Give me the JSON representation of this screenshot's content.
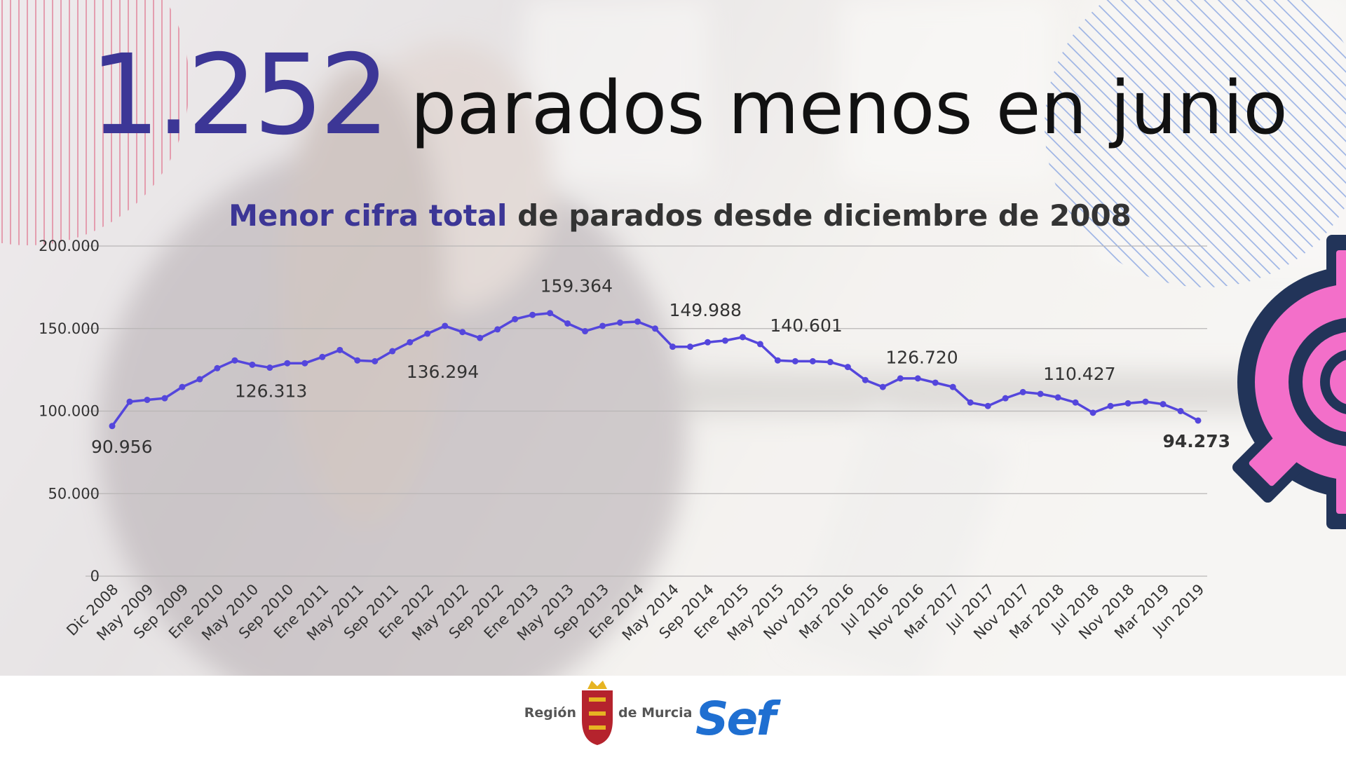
{
  "chart_data": {
    "type": "line",
    "headline": {
      "number": "1.252",
      "text": "parados menos en junio"
    },
    "subtitle": {
      "highlight": "Menor cifra total",
      "text": "de parados desde diciembre de 2008"
    },
    "categories": [
      "Dic 2008",
      null,
      "May 2009",
      null,
      "Sep 2009",
      null,
      "Ene 2010",
      null,
      "May 2010",
      null,
      "Sep 2010",
      null,
      "Ene 2011",
      null,
      "May 2011",
      null,
      "Sep 2011",
      null,
      "Ene 2012",
      null,
      "May 2012",
      null,
      "Sep 2012",
      null,
      "Ene 2013",
      null,
      "May 2013",
      null,
      "Sep 2013",
      null,
      "Ene 2014",
      null,
      "May 2014",
      null,
      "Sep 2014",
      null,
      "Ene 2015",
      null,
      "May 2015",
      null,
      "Nov 2015",
      null,
      "Mar 2016",
      null,
      "Jul 2016",
      null,
      "Nov 2016",
      null,
      "Mar 2017",
      null,
      "Jul 2017",
      null,
      "Nov 2017",
      null,
      "Mar 2018",
      null,
      "Jul 2018",
      null,
      "Nov 2018",
      null,
      "Mar 2019",
      null,
      "Jun 2019"
    ],
    "values": [
      90956,
      105700,
      106800,
      107800,
      114600,
      119300,
      126000,
      130700,
      128100,
      126313,
      129000,
      129000,
      132800,
      137000,
      130700,
      130200,
      136294,
      141700,
      146900,
      151600,
      147900,
      144300,
      149500,
      155700,
      158300,
      159364,
      153100,
      148400,
      151600,
      153600,
      154200,
      149988,
      139000,
      139000,
      141700,
      142700,
      144800,
      140601,
      130700,
      130200,
      130200,
      129700,
      126720,
      118800,
      114600,
      119800,
      119800,
      117200,
      114600,
      105200,
      103100,
      107800,
      111500,
      110427,
      108300,
      105200,
      99000,
      103100,
      104700,
      105700,
      104200,
      100000,
      94273
    ],
    "value_labels": [
      "90.956",
      null,
      null,
      null,
      null,
      null,
      null,
      null,
      null,
      "126.313",
      null,
      null,
      null,
      null,
      null,
      null,
      "136.294",
      null,
      null,
      null,
      null,
      null,
      null,
      null,
      null,
      "159.364",
      null,
      null,
      null,
      null,
      null,
      "149.988",
      null,
      null,
      null,
      null,
      null,
      "140.601",
      null,
      null,
      null,
      null,
      "126.720",
      null,
      null,
      null,
      null,
      null,
      null,
      null,
      null,
      null,
      null,
      "110.427",
      null,
      null,
      null,
      null,
      null,
      null,
      null,
      null,
      "94.273"
    ],
    "color": "#5446dc",
    "ylim": [
      0,
      200000
    ],
    "yticks": [
      0,
      {
        "value": 50000,
        "label": "50.000"
      },
      {
        "value": 100000,
        "label": "100.000"
      },
      {
        "value": 150000,
        "label": "150.000"
      },
      {
        "value": 200000,
        "label": "200.000"
      }
    ],
    "grid": true,
    "footer": {
      "region": "Región",
      "region2": "de Murcia",
      "brand": "Sef"
    }
  }
}
